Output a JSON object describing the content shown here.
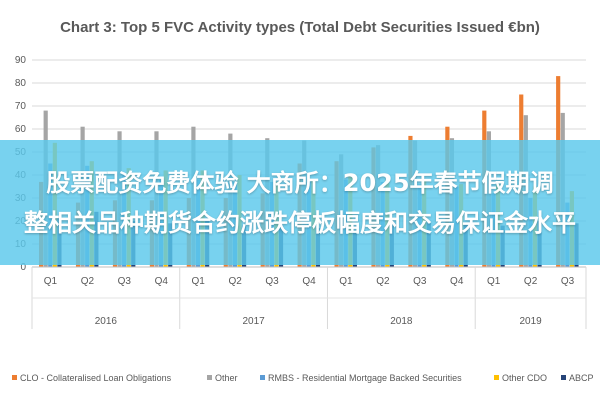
{
  "overlay": {
    "line1": "股票配资免费体验 大商所：2025年春节假期调",
    "line2": "整相关品种期货合约涨跌停板幅度和交易保证金水平"
  },
  "chart_data": {
    "type": "bar",
    "title": "Chart 3: Top 5 FVC Activity types (Total Debt Securities Issued €bn)",
    "xlabel": "",
    "ylabel": "",
    "ylim": [
      0,
      90
    ],
    "yticks": [
      0,
      10,
      20,
      30,
      40,
      50,
      60,
      70,
      80,
      90
    ],
    "grid": true,
    "legend_position": "bottom",
    "categories": [
      "Q1",
      "Q2",
      "Q3",
      "Q4",
      "Q1",
      "Q2",
      "Q3",
      "Q4",
      "Q1",
      "Q2",
      "Q3",
      "Q4",
      "Q1",
      "Q2",
      "Q3"
    ],
    "groups": [
      {
        "label": "2016",
        "count": 4
      },
      {
        "label": "2017",
        "count": 4
      },
      {
        "label": "2018",
        "count": 4
      },
      {
        "label": "2019",
        "count": 3
      }
    ],
    "series": [
      {
        "name": "CLO - Collateralised Loan Obligations",
        "color": "#ED7D31",
        "values": [
          37,
          28,
          29,
          29,
          30,
          30,
          32,
          45,
          46,
          52,
          57,
          61,
          68,
          75,
          83
        ]
      },
      {
        "name": "Other",
        "color": "#A5A5A5",
        "values": [
          68,
          61,
          59,
          59,
          61,
          58,
          56,
          55,
          49,
          53,
          55,
          56,
          59,
          66,
          67
        ]
      },
      {
        "name": "RMBS - Residential Mortgage Backed Securities",
        "color": "#5B9BD5",
        "values": [
          45,
          44,
          40,
          38,
          38,
          37,
          37,
          37,
          38,
          37,
          36,
          35,
          32,
          30,
          28
        ]
      },
      {
        "name": "Other CDO",
        "color": "#FFC000",
        "values": [
          54,
          46,
          43,
          42,
          42,
          40,
          37,
          38,
          40,
          38,
          38,
          36,
          36,
          35,
          33
        ]
      },
      {
        "name": "ABCP",
        "color": "#264478",
        "values": [
          22,
          24,
          20,
          19,
          20,
          18,
          18,
          17,
          16,
          18,
          19,
          19,
          18,
          20,
          19
        ]
      }
    ]
  }
}
